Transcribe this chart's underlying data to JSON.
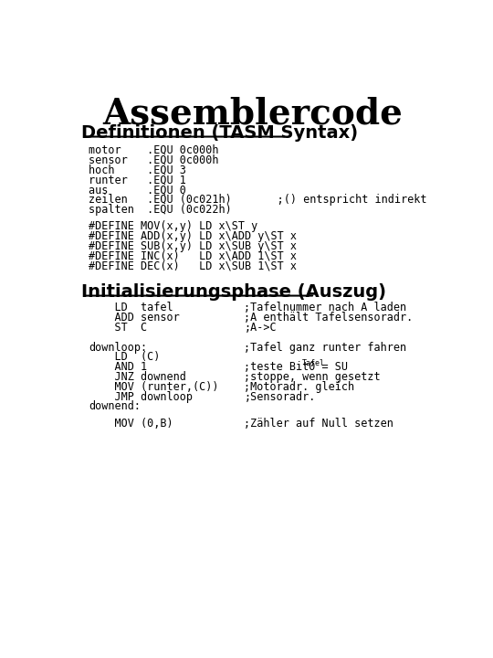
{
  "title": "Assemblercode",
  "title_fontsize": 28,
  "title_fontweight": "bold",
  "background_color": "#ffffff",
  "text_color": "#000000",
  "section1_title": "Definitionen (TASM Syntax)",
  "section2_title": "Initialisierungsphase (Auszug)",
  "section1_title_fontsize": 14,
  "section2_title_fontsize": 14,
  "code_fontsize": 8.5,
  "mono_font": "monospace",
  "equ_lines": [
    "motor    .EQU 0c000h",
    "sensor   .EQU 0c000h",
    "hoch     .EQU 3",
    "runter   .EQU 1",
    "aus      .EQU 0",
    "zeilen   .EQU (0c021h)       ;() entspricht indirekt",
    "spalten  .EQU (0c022h)"
  ],
  "define_lines": [
    "#DEFINE MOV(x,y) LD x\\ST y",
    "#DEFINE ADD(x,y) LD x\\ADD y\\ST x",
    "#DEFINE SUB(x,y) LD x\\SUB y\\ST x",
    "#DEFINE INC(x)   LD x\\ADD 1\\ST x",
    "#DEFINE DEC(x)   LD x\\SUB 1\\ST x"
  ],
  "init_lines_left": [
    "    LD  tafel",
    "    ADD sensor",
    "    ST  C",
    "",
    "downloop:",
    "    LD  (C)",
    "    AND 1",
    "    JNZ downend",
    "    MOV (runter,(C))",
    "    JMP downloop",
    "downend:"
  ],
  "init_lines_right": [
    ";Tafelnummer nach A laden",
    ";A enthält Tafelsensoradr.",
    ";A->C",
    "",
    ";Tafel ganz runter fahren",
    "",
    ";teste Bit0 = SU",
    ";stoppe, wenn gesetzt",
    ";Motoradr. gleich",
    ";Sensoradr.",
    ""
  ],
  "last_line_left": "    MOV (0,B)",
  "last_line_right": ";Zähler auf Null setzen",
  "su_subscript": "Tafel"
}
